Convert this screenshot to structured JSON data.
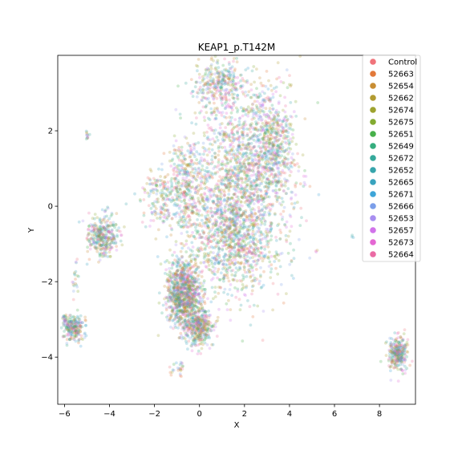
{
  "chart_data": {
    "type": "scatter",
    "title": "KEAP1_p.T142M",
    "xlabel": "X",
    "ylabel": "Y",
    "xlim": [
      -6.3,
      9.6
    ],
    "ylim": [
      -5.25,
      4.0
    ],
    "xticks": [
      -6,
      -4,
      -2,
      0,
      2,
      4,
      6,
      8
    ],
    "yticks": [
      -4,
      -2,
      0,
      2
    ],
    "grid": false,
    "legend_position": "top-right",
    "point_alpha": 0.25,
    "series": [
      {
        "name": "Control",
        "color": "#f0747b"
      },
      {
        "name": "52663",
        "color": "#e2793a"
      },
      {
        "name": "52654",
        "color": "#c88d33"
      },
      {
        "name": "52662",
        "color": "#b29b31"
      },
      {
        "name": "52674",
        "color": "#9ea32f"
      },
      {
        "name": "52675",
        "color": "#83ab31"
      },
      {
        "name": "52651",
        "color": "#47b04a"
      },
      {
        "name": "52649",
        "color": "#35ad7e"
      },
      {
        "name": "52672",
        "color": "#36a99b"
      },
      {
        "name": "52652",
        "color": "#37a5ac"
      },
      {
        "name": "52665",
        "color": "#39a3be"
      },
      {
        "name": "52671",
        "color": "#3ea5d8"
      },
      {
        "name": "52666",
        "color": "#7b9ee9"
      },
      {
        "name": "52653",
        "color": "#a88ef0"
      },
      {
        "name": "52657",
        "color": "#d173ea"
      },
      {
        "name": "52673",
        "color": "#e467d3"
      },
      {
        "name": "52664",
        "color": "#ea6ba4"
      }
    ],
    "clusters": [
      {
        "cx": 1.9,
        "cy": 1.2,
        "rx": 2.2,
        "ry": 2.4,
        "n": 1300
      },
      {
        "cx": 1.5,
        "cy": -0.8,
        "rx": 2.2,
        "ry": 1.6,
        "n": 1100
      },
      {
        "cx": 0.8,
        "cy": 3.2,
        "rx": 1.0,
        "ry": 0.6,
        "n": 260
      },
      {
        "cx": 3.3,
        "cy": 1.6,
        "rx": 0.9,
        "ry": 1.4,
        "n": 420
      },
      {
        "cx": -0.7,
        "cy": -2.3,
        "rx": 0.8,
        "ry": 0.9,
        "n": 950
      },
      {
        "cx": 0.0,
        "cy": -3.2,
        "rx": 0.6,
        "ry": 0.5,
        "n": 380
      },
      {
        "cx": -0.6,
        "cy": 0.6,
        "rx": 0.8,
        "ry": 1.2,
        "n": 320
      },
      {
        "cx": -1.8,
        "cy": 0.2,
        "rx": 0.8,
        "ry": 0.8,
        "n": 160
      },
      {
        "cx": -4.3,
        "cy": -0.8,
        "rx": 0.7,
        "ry": 0.55,
        "n": 340
      },
      {
        "cx": -5.6,
        "cy": -3.25,
        "rx": 0.45,
        "ry": 0.35,
        "n": 230
      },
      {
        "cx": 8.8,
        "cy": -3.9,
        "rx": 0.4,
        "ry": 0.45,
        "n": 290
      },
      {
        "cx": -6.0,
        "cy": -3.0,
        "rx": 0.1,
        "ry": 0.1,
        "n": 12
      },
      {
        "cx": -5.5,
        "cy": -2.0,
        "rx": 0.15,
        "ry": 0.6,
        "n": 20
      },
      {
        "cx": -5.0,
        "cy": 1.9,
        "rx": 0.1,
        "ry": 0.15,
        "n": 12
      },
      {
        "cx": 5.2,
        "cy": -1.2,
        "rx": 0.05,
        "ry": 0.05,
        "n": 3
      },
      {
        "cx": 6.8,
        "cy": -0.8,
        "rx": 0.1,
        "ry": 0.05,
        "n": 3
      },
      {
        "cx": -0.9,
        "cy": -4.3,
        "rx": 0.3,
        "ry": 0.3,
        "n": 25
      }
    ]
  }
}
